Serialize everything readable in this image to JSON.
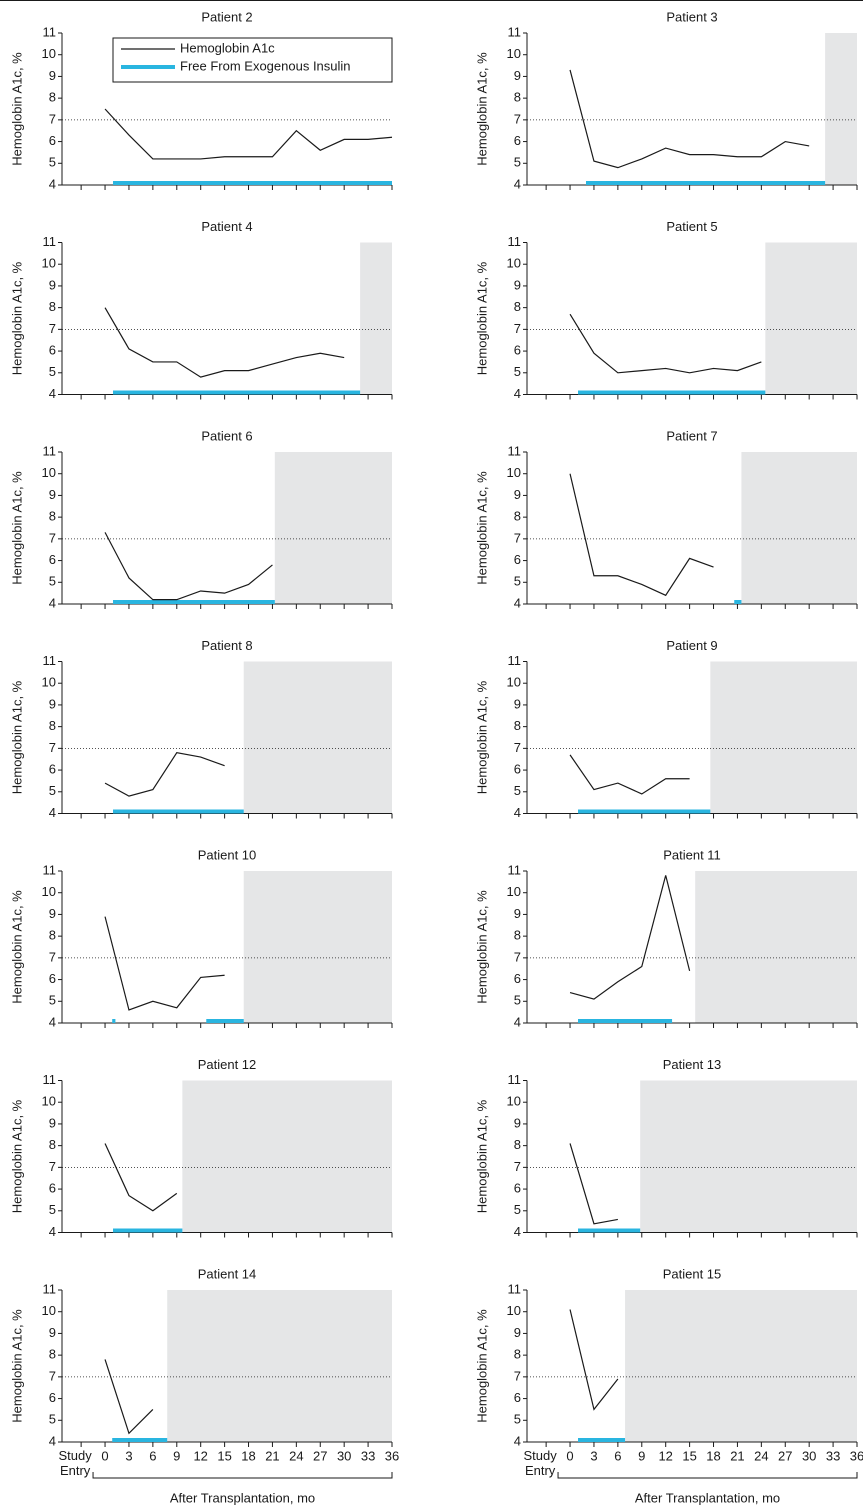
{
  "chart_data": [
    {
      "type": "line",
      "title": "Patient 2",
      "ylabel": "Hemoglobin A1c, %",
      "xlim": [
        -5.4,
        36
      ],
      "ylim": [
        4,
        11
      ],
      "yticks": [
        4,
        5,
        6,
        7,
        8,
        9,
        10,
        11
      ],
      "xticks": [
        -3,
        0,
        3,
        6,
        9,
        12,
        15,
        18,
        21,
        24,
        27,
        30,
        33,
        36
      ],
      "xtick_labels": false,
      "x": [
        0,
        3,
        6,
        9,
        12,
        15,
        18,
        21,
        24,
        27,
        30,
        33,
        36
      ],
      "values": [
        7.5,
        6.3,
        5.2,
        5.2,
        5.2,
        5.3,
        5.3,
        5.3,
        6.5,
        5.6,
        6.1,
        6.1,
        6.2
      ],
      "color": "#1a1a1a",
      "ref_line": 7,
      "insulin_free": [
        [
          1,
          36
        ]
      ],
      "insulin_free_color": "#29b5e0",
      "shade_color": "#e5e6e7",
      "legend": {
        "corner": "top-right",
        "items": [
          {
            "name": "Hemoglobin A1c",
            "color": "#1a1a1a"
          },
          {
            "name": "Free From Exogenous Insulin",
            "color": "#29b5e0"
          }
        ]
      }
    },
    {
      "type": "line",
      "title": "Patient 3",
      "ylabel": "Hemoglobin A1c, %",
      "xlim": [
        -5.4,
        36
      ],
      "ylim": [
        4,
        11
      ],
      "yticks": [
        4,
        5,
        6,
        7,
        8,
        9,
        10,
        11
      ],
      "xticks": [
        -3,
        0,
        3,
        6,
        9,
        12,
        15,
        18,
        21,
        24,
        27,
        30,
        33,
        36
      ],
      "xtick_labels": false,
      "x": [
        0,
        3,
        6,
        9,
        12,
        15,
        18,
        21,
        24,
        27,
        30
      ],
      "values": [
        9.3,
        5.1,
        4.8,
        5.2,
        5.7,
        5.4,
        5.4,
        5.3,
        5.3,
        6.0,
        5.8
      ],
      "color": "#1a1a1a",
      "ref_line": 7,
      "insulin_free": [
        [
          2,
          32
        ]
      ],
      "insulin_free_color": "#29b5e0",
      "shaded_from": 32,
      "shade_color": "#e5e6e7"
    },
    {
      "type": "line",
      "title": "Patient 4",
      "ylabel": "Hemoglobin A1c, %",
      "xlim": [
        -5.4,
        36
      ],
      "ylim": [
        4,
        11
      ],
      "yticks": [
        4,
        5,
        6,
        7,
        8,
        9,
        10,
        11
      ],
      "xticks": [
        -3,
        0,
        3,
        6,
        9,
        12,
        15,
        18,
        21,
        24,
        27,
        30,
        33,
        36
      ],
      "xtick_labels": false,
      "x": [
        0,
        3,
        6,
        9,
        12,
        15,
        18,
        21,
        24,
        27,
        30
      ],
      "values": [
        8.0,
        6.1,
        5.5,
        5.5,
        4.8,
        5.1,
        5.1,
        5.4,
        5.7,
        5.9,
        5.7
      ],
      "color": "#1a1a1a",
      "ref_line": 7,
      "insulin_free": [
        [
          1,
          32
        ]
      ],
      "insulin_free_color": "#29b5e0",
      "shaded_from": 32,
      "shade_color": "#e5e6e7"
    },
    {
      "type": "line",
      "title": "Patient 5",
      "ylabel": "Hemoglobin A1c, %",
      "xlim": [
        -5.4,
        36
      ],
      "ylim": [
        4,
        11
      ],
      "yticks": [
        4,
        5,
        6,
        7,
        8,
        9,
        10,
        11
      ],
      "xticks": [
        -3,
        0,
        3,
        6,
        9,
        12,
        15,
        18,
        21,
        24,
        27,
        30,
        33,
        36
      ],
      "xtick_labels": false,
      "x": [
        0,
        3,
        6,
        9,
        12,
        15,
        18,
        21,
        24
      ],
      "values": [
        7.7,
        5.9,
        5.0,
        5.1,
        5.2,
        5.0,
        5.2,
        5.1,
        5.5
      ],
      "color": "#1a1a1a",
      "ref_line": 7,
      "insulin_free": [
        [
          1,
          24.5
        ]
      ],
      "insulin_free_color": "#29b5e0",
      "shaded_from": 24.5,
      "shade_color": "#e5e6e7"
    },
    {
      "type": "line",
      "title": "Patient 6",
      "ylabel": "Hemoglobin A1c, %",
      "xlim": [
        -5.4,
        36
      ],
      "ylim": [
        4,
        11
      ],
      "yticks": [
        4,
        5,
        6,
        7,
        8,
        9,
        10,
        11
      ],
      "xticks": [
        -3,
        0,
        3,
        6,
        9,
        12,
        15,
        18,
        21,
        24,
        27,
        30,
        33,
        36
      ],
      "xtick_labels": false,
      "x": [
        0,
        3,
        6,
        9,
        12,
        15,
        18,
        21
      ],
      "values": [
        7.3,
        5.2,
        4.2,
        4.2,
        4.6,
        4.5,
        4.9,
        5.8
      ],
      "color": "#1a1a1a",
      "ref_line": 7,
      "insulin_free": [
        [
          1,
          21.3
        ]
      ],
      "insulin_free_color": "#29b5e0",
      "shaded_from": 21.3,
      "shade_color": "#e5e6e7"
    },
    {
      "type": "line",
      "title": "Patient 7",
      "ylabel": "Hemoglobin A1c, %",
      "xlim": [
        -5.4,
        36
      ],
      "ylim": [
        4,
        11
      ],
      "yticks": [
        4,
        5,
        6,
        7,
        8,
        9,
        10,
        11
      ],
      "xticks": [
        -3,
        0,
        3,
        6,
        9,
        12,
        15,
        18,
        21,
        24,
        27,
        30,
        33,
        36
      ],
      "xtick_labels": false,
      "x": [
        0,
        3,
        6,
        9,
        12,
        15,
        18
      ],
      "values": [
        10.0,
        5.3,
        5.3,
        4.9,
        4.4,
        6.1,
        5.7
      ],
      "color": "#1a1a1a",
      "ref_line": 7,
      "insulin_free": [
        [
          20.6,
          21.5
        ]
      ],
      "insulin_free_color": "#29b5e0",
      "shaded_from": 21.5,
      "shade_color": "#e5e6e7"
    },
    {
      "type": "line",
      "title": "Patient 8",
      "ylabel": "Hemoglobin A1c, %",
      "xlim": [
        -5.4,
        36
      ],
      "ylim": [
        4,
        11
      ],
      "yticks": [
        4,
        5,
        6,
        7,
        8,
        9,
        10,
        11
      ],
      "xticks": [
        -3,
        0,
        3,
        6,
        9,
        12,
        15,
        18,
        21,
        24,
        27,
        30,
        33,
        36
      ],
      "xtick_labels": false,
      "x": [
        0,
        3,
        6,
        9,
        12,
        15
      ],
      "values": [
        5.4,
        4.8,
        5.1,
        6.8,
        6.6,
        6.2
      ],
      "color": "#1a1a1a",
      "ref_line": 7,
      "insulin_free": [
        [
          1,
          17.4
        ]
      ],
      "insulin_free_color": "#29b5e0",
      "shaded_from": 17.4,
      "shade_color": "#e5e6e7"
    },
    {
      "type": "line",
      "title": "Patient 9",
      "ylabel": "Hemoglobin A1c, %",
      "xlim": [
        -5.4,
        36
      ],
      "ylim": [
        4,
        11
      ],
      "yticks": [
        4,
        5,
        6,
        7,
        8,
        9,
        10,
        11
      ],
      "xticks": [
        -3,
        0,
        3,
        6,
        9,
        12,
        15,
        18,
        21,
        24,
        27,
        30,
        33,
        36
      ],
      "xtick_labels": false,
      "x": [
        0,
        3,
        6,
        9,
        12,
        15
      ],
      "values": [
        6.7,
        5.1,
        5.4,
        4.9,
        5.6,
        5.6
      ],
      "color": "#1a1a1a",
      "ref_line": 7,
      "insulin_free": [
        [
          1,
          17.6
        ]
      ],
      "insulin_free_color": "#29b5e0",
      "shaded_from": 17.6,
      "shade_color": "#e5e6e7"
    },
    {
      "type": "line",
      "title": "Patient 10",
      "ylabel": "Hemoglobin A1c, %",
      "xlim": [
        -5.4,
        36
      ],
      "ylim": [
        4,
        11
      ],
      "yticks": [
        4,
        5,
        6,
        7,
        8,
        9,
        10,
        11
      ],
      "xticks": [
        -3,
        0,
        3,
        6,
        9,
        12,
        15,
        18,
        21,
        24,
        27,
        30,
        33,
        36
      ],
      "xtick_labels": false,
      "x": [
        0,
        3,
        6,
        9,
        12,
        15
      ],
      "values": [
        8.9,
        4.6,
        5.0,
        4.7,
        6.1,
        6.2
      ],
      "color": "#1a1a1a",
      "ref_line": 7,
      "insulin_free": [
        [
          0.9,
          1.3
        ],
        [
          12.7,
          17.4
        ]
      ],
      "insulin_free_color": "#29b5e0",
      "shaded_from": 17.4,
      "shade_color": "#e5e6e7"
    },
    {
      "type": "line",
      "title": "Patient 11",
      "ylabel": "Hemoglobin A1c, %",
      "xlim": [
        -5.4,
        36
      ],
      "ylim": [
        4,
        11
      ],
      "yticks": [
        4,
        5,
        6,
        7,
        8,
        9,
        10,
        11
      ],
      "xticks": [
        -3,
        0,
        3,
        6,
        9,
        12,
        15,
        18,
        21,
        24,
        27,
        30,
        33,
        36
      ],
      "xtick_labels": false,
      "x": [
        0,
        3,
        6,
        9,
        12,
        15
      ],
      "values": [
        5.4,
        5.1,
        5.9,
        6.6,
        10.8,
        6.4
      ],
      "color": "#1a1a1a",
      "ref_line": 7,
      "insulin_free": [
        [
          1,
          12.8
        ]
      ],
      "insulin_free_color": "#29b5e0",
      "shaded_from": 15.7,
      "shade_color": "#e5e6e7"
    },
    {
      "type": "line",
      "title": "Patient 12",
      "ylabel": "Hemoglobin A1c, %",
      "xlim": [
        -5.4,
        36
      ],
      "ylim": [
        4,
        11
      ],
      "yticks": [
        4,
        5,
        6,
        7,
        8,
        9,
        10,
        11
      ],
      "xticks": [
        -3,
        0,
        3,
        6,
        9,
        12,
        15,
        18,
        21,
        24,
        27,
        30,
        33,
        36
      ],
      "xtick_labels": false,
      "x": [
        0,
        3,
        6,
        9
      ],
      "values": [
        8.1,
        5.7,
        5.0,
        5.8
      ],
      "color": "#1a1a1a",
      "ref_line": 7,
      "insulin_free": [
        [
          1,
          9.7
        ]
      ],
      "insulin_free_color": "#29b5e0",
      "shaded_from": 9.7,
      "shade_color": "#e5e6e7"
    },
    {
      "type": "line",
      "title": "Patient 13",
      "ylabel": "Hemoglobin A1c, %",
      "xlim": [
        -5.4,
        36
      ],
      "ylim": [
        4,
        11
      ],
      "yticks": [
        4,
        5,
        6,
        7,
        8,
        9,
        10,
        11
      ],
      "xticks": [
        -3,
        0,
        3,
        6,
        9,
        12,
        15,
        18,
        21,
        24,
        27,
        30,
        33,
        36
      ],
      "xtick_labels": false,
      "x": [
        0,
        3,
        6
      ],
      "values": [
        8.1,
        4.4,
        4.6
      ],
      "color": "#1a1a1a",
      "ref_line": 7,
      "insulin_free": [
        [
          1,
          8.8
        ]
      ],
      "insulin_free_color": "#29b5e0",
      "shaded_from": 8.8,
      "shade_color": "#e5e6e7"
    },
    {
      "type": "line",
      "title": "Patient 14",
      "ylabel": "Hemoglobin A1c, %",
      "xlabel": "After Transplantation, mo",
      "xlim": [
        -5.4,
        36
      ],
      "ylim": [
        4,
        11
      ],
      "yticks": [
        4,
        5,
        6,
        7,
        8,
        9,
        10,
        11
      ],
      "xticks": [
        {
          "value": -3,
          "label": "Study Entry"
        },
        0,
        3,
        6,
        9,
        12,
        15,
        18,
        21,
        24,
        27,
        30,
        33,
        36
      ],
      "xtick_labels": true,
      "x": [
        0,
        3,
        6
      ],
      "values": [
        7.8,
        4.4,
        5.5
      ],
      "color": "#1a1a1a",
      "ref_line": 7,
      "insulin_free": [
        [
          0.9,
          7.8
        ]
      ],
      "insulin_free_color": "#29b5e0",
      "shaded_from": 7.8,
      "shade_color": "#e5e6e7"
    },
    {
      "type": "line",
      "title": "Patient 15",
      "ylabel": "Hemoglobin A1c, %",
      "xlabel": "After Transplantation, mo",
      "xlim": [
        -5.4,
        36
      ],
      "ylim": [
        4,
        11
      ],
      "yticks": [
        4,
        5,
        6,
        7,
        8,
        9,
        10,
        11
      ],
      "xticks": [
        {
          "value": -3,
          "label": "Study Entry"
        },
        0,
        3,
        6,
        9,
        12,
        15,
        18,
        21,
        24,
        27,
        30,
        33,
        36
      ],
      "xtick_labels": true,
      "x": [
        0,
        3,
        6
      ],
      "values": [
        10.1,
        5.5,
        6.9
      ],
      "color": "#1a1a1a",
      "ref_line": 7,
      "insulin_free": [
        [
          1,
          6.9
        ]
      ],
      "insulin_free_color": "#29b5e0",
      "shaded_from": 6.9,
      "shade_color": "#e5e6e7"
    }
  ]
}
